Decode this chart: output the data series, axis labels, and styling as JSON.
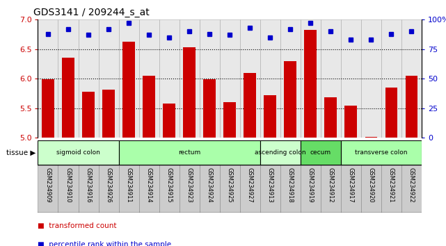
{
  "title": "GDS3141 / 209244_s_at",
  "samples": [
    "GSM234909",
    "GSM234910",
    "GSM234916",
    "GSM234926",
    "GSM234911",
    "GSM234914",
    "GSM234915",
    "GSM234923",
    "GSM234924",
    "GSM234925",
    "GSM234927",
    "GSM234913",
    "GSM234918",
    "GSM234919",
    "GSM234912",
    "GSM234917",
    "GSM234920",
    "GSM234921",
    "GSM234922"
  ],
  "bar_values": [
    5.99,
    6.36,
    5.78,
    5.82,
    6.63,
    6.05,
    5.58,
    6.53,
    5.99,
    5.6,
    6.1,
    5.72,
    6.3,
    6.83,
    5.68,
    5.55,
    5.02,
    5.85,
    6.05
  ],
  "dot_values": [
    88,
    92,
    87,
    92,
    97,
    87,
    85,
    90,
    88,
    87,
    93,
    85,
    92,
    97,
    90,
    83,
    83,
    88,
    90
  ],
  "ylim_left": [
    5.0,
    7.0
  ],
  "ylim_right": [
    0,
    100
  ],
  "yticks_left": [
    5.0,
    5.5,
    6.0,
    6.5,
    7.0
  ],
  "yticks_right": [
    0,
    25,
    50,
    75,
    100
  ],
  "ytick_right_labels": [
    "0",
    "25",
    "50",
    "75",
    "100%"
  ],
  "hlines": [
    5.5,
    6.0,
    6.5
  ],
  "bar_color": "#cc0000",
  "dot_color": "#0000cc",
  "tissue_groups": [
    {
      "label": "sigmoid colon",
      "start": 0,
      "end": 4,
      "color": "#ccffcc"
    },
    {
      "label": "rectum",
      "start": 4,
      "end": 11,
      "color": "#aaffaa"
    },
    {
      "label": "ascending colon",
      "start": 11,
      "end": 13,
      "color": "#ccffcc"
    },
    {
      "label": "cecum",
      "start": 13,
      "end": 15,
      "color": "#66dd66"
    },
    {
      "label": "transverse colon",
      "start": 15,
      "end": 19,
      "color": "#aaffaa"
    }
  ],
  "legend_items": [
    {
      "label": "transformed count",
      "color": "#cc0000"
    },
    {
      "label": "percentile rank within the sample",
      "color": "#0000cc"
    }
  ],
  "tissue_label": "tissue",
  "tick_color_left": "#cc0000",
  "tick_color_right": "#0000cc",
  "background_color": "#ffffff",
  "sample_bg_color": "#dddddd",
  "title_fontsize": 10,
  "bar_width": 0.6
}
